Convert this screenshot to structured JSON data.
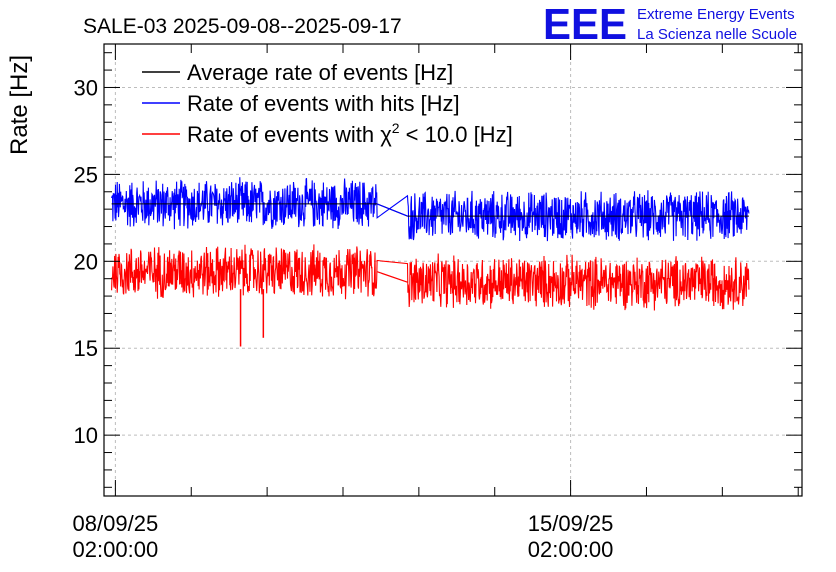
{
  "chart_data": {
    "type": "line",
    "title": "SALE-03 2025-09-08--2025-09-17",
    "xlabel": "",
    "ylabel": "Rate [Hz]",
    "ylim": [
      6.5,
      32.5
    ],
    "xlim_days": [
      -0.15,
      9.05
    ],
    "grid": true,
    "legend_position": "top-left",
    "y_ticks": [
      10,
      15,
      20,
      25,
      30
    ],
    "x_ticks": [
      {
        "day": 0,
        "line1": "08/09/25",
        "line2": "02:00:00"
      },
      {
        "day": 6,
        "line1": "15/09/25",
        "line2": "02:00:00"
      }
    ],
    "logo": {
      "mark": "EEE",
      "line1": "Extreme Energy Events",
      "line2": "La Scienza nelle Scuole"
    },
    "gap_days": [
      3.45,
      3.85
    ],
    "data_range_days": [
      -0.05,
      8.35
    ],
    "series": [
      {
        "name": "Average rate of events [Hz]",
        "legend_label": "Average rate of events [Hz]",
        "color": "#000000",
        "mean_before": 23.3,
        "mean_after": 22.6,
        "spread": 0
      },
      {
        "name": "Rate of events with hits [Hz]",
        "legend_label": "Rate of events with hits [Hz]",
        "color": "#0000ff",
        "mean_before": 23.3,
        "mean_after": 22.6,
        "spread": 1.6
      },
      {
        "name": "Rate of events with chi2 < 10.0 [Hz]",
        "legend_label_prefix": "Rate of events with χ",
        "legend_sup": "2",
        "legend_label_suffix": " < 10.0 [Hz]",
        "color": "#ff0000",
        "mean_before": 19.4,
        "mean_after": 18.8,
        "spread": 1.7
      }
    ],
    "red_spikes": [
      {
        "day": 1.65,
        "value": 15.1
      },
      {
        "day": 1.95,
        "value": 15.6
      }
    ],
    "colors": {
      "frame": "#000000",
      "grid": "#bdbdbd",
      "logo": "#1010e0"
    }
  }
}
